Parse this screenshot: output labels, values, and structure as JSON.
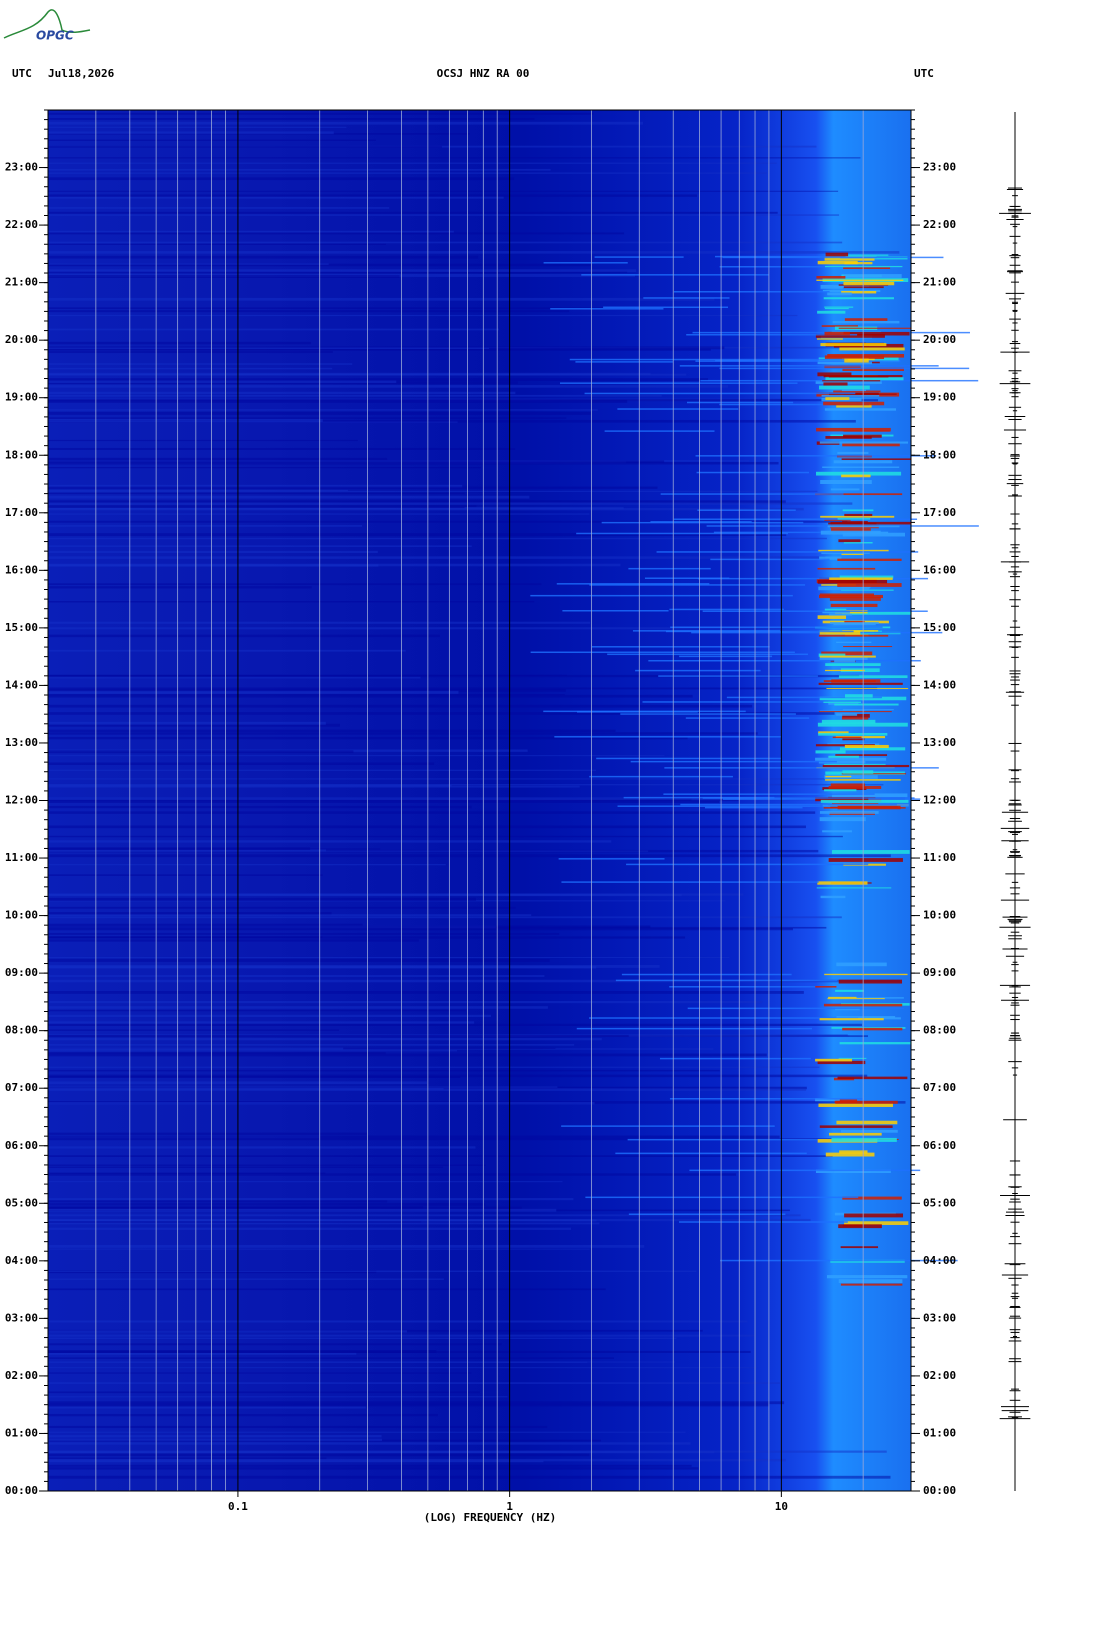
{
  "chart_data": {
    "type": "spectrogram",
    "logo": "OPGC",
    "title": "OCSJ HNZ RA 00",
    "date": "Jul18,2026",
    "left_label": "UTC",
    "right_label": "UTC",
    "xlabel": "(LOG) FREQUENCY (HZ)",
    "xlog": true,
    "xlim": [
      0.02,
      30
    ],
    "xticks": [
      0.1,
      1,
      10
    ],
    "ylim": [
      0,
      24
    ],
    "yticks": [
      {
        "value": 0,
        "label": "00:00"
      },
      {
        "value": 1,
        "label": "01:00"
      },
      {
        "value": 2,
        "label": "02:00"
      },
      {
        "value": 3,
        "label": "03:00"
      },
      {
        "value": 4,
        "label": "04:00"
      },
      {
        "value": 5,
        "label": "05:00"
      },
      {
        "value": 6,
        "label": "06:00"
      },
      {
        "value": 7,
        "label": "07:00"
      },
      {
        "value": 8,
        "label": "08:00"
      },
      {
        "value": 9,
        "label": "09:00"
      },
      {
        "value": 10,
        "label": "10:00"
      },
      {
        "value": 11,
        "label": "11:00"
      },
      {
        "value": 12,
        "label": "12:00"
      },
      {
        "value": 13,
        "label": "13:00"
      },
      {
        "value": 14,
        "label": "14:00"
      },
      {
        "value": 15,
        "label": "15:00"
      },
      {
        "value": 16,
        "label": "16:00"
      },
      {
        "value": 17,
        "label": "17:00"
      },
      {
        "value": 18,
        "label": "18:00"
      },
      {
        "value": 19,
        "label": "19:00"
      },
      {
        "value": 20,
        "label": "20:00"
      },
      {
        "value": 21,
        "label": "21:00"
      },
      {
        "value": 22,
        "label": "22:00"
      },
      {
        "value": 23,
        "label": "23:00"
      }
    ]
  }
}
